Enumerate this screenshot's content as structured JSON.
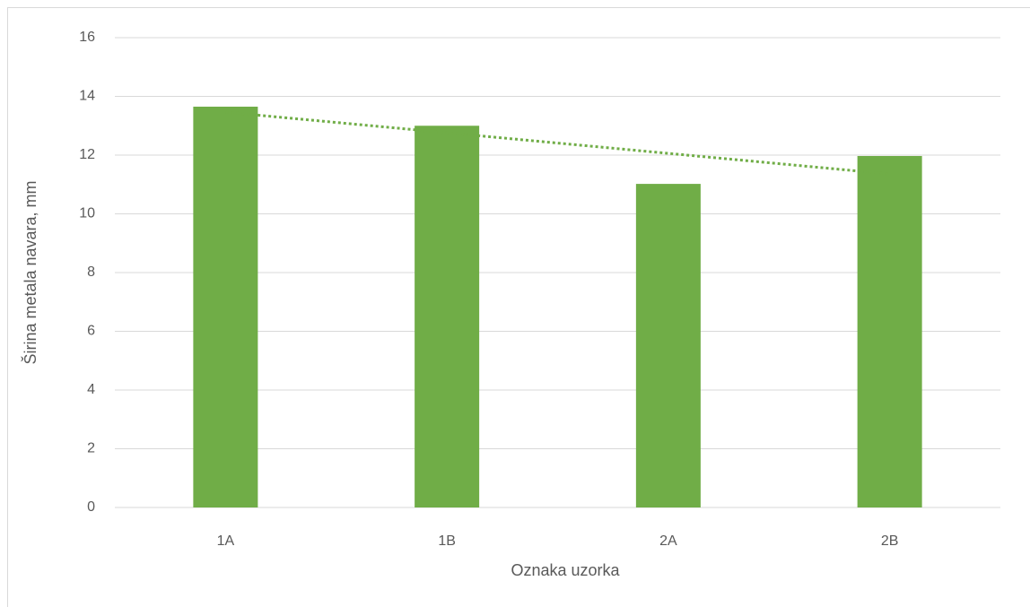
{
  "chart_data": {
    "type": "bar",
    "categories": [
      "1A",
      "1B",
      "2A",
      "2B"
    ],
    "values": [
      13.65,
      13.0,
      11.02,
      11.97
    ],
    "color": "#70ad47",
    "trendline": "linear",
    "xlabel": "Oznaka uzorka",
    "ylabel": "Širina metala navara, mm",
    "ylim": [
      0,
      16
    ],
    "yticks": [
      0,
      2,
      4,
      6,
      8,
      10,
      12,
      14,
      16
    ],
    "grid": true
  }
}
